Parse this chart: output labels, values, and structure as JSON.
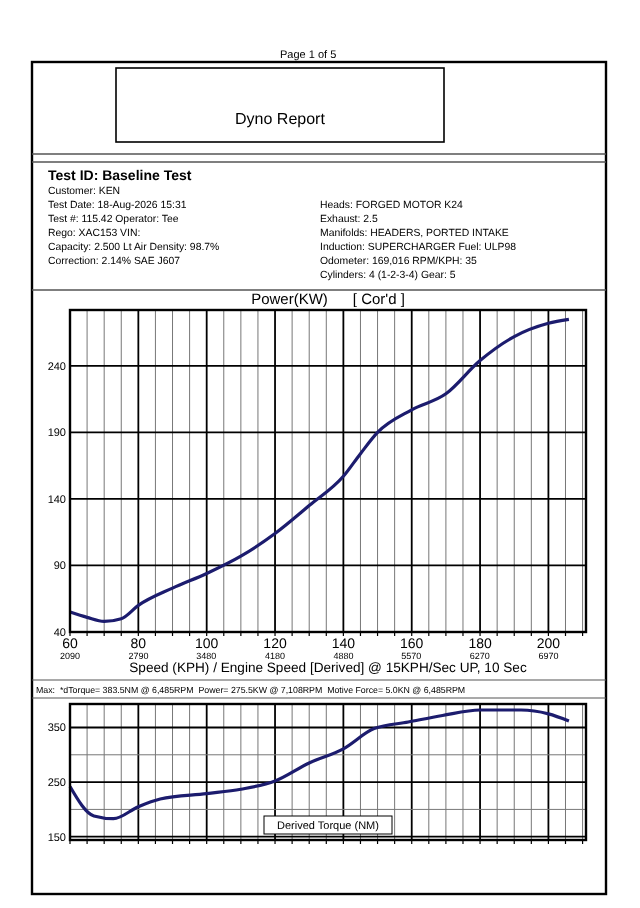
{
  "chart_data": [
    {
      "type": "line",
      "title": "Power(KW)      [ Cor'd ]",
      "xlabel": "Speed (KPH) / Engine Speed [Derived] @ 15KPH/Sec UP, 10 Sec",
      "annotations": [
        "Page 1 of 5",
        "Dyno Report",
        "Test ID: Baseline Test",
        "Customer: KEN",
        "Test Date: 18-Aug-2026 15:31",
        "Test #: 115.42   Operator: Tee",
        "Rego: XAC153   VIN:",
        "Capacity: 2.500 Lt   Air Density: 98.7%",
        "Correction: 2.14% SAE J607",
        "Heads: FORGED MOTOR K24",
        "Exhaust: 2.5",
        "Manifolds: HEADERS, PORTED INTAKE",
        "Induction: SUPERCHARGER   Fuel: ULP98",
        "Odometer: 169,016   RPM/KPH: 35",
        "Cylinders: 4 (1-2-3-4)   Gear: 5"
      ],
      "x": [
        60,
        65,
        70,
        75,
        80,
        90,
        100,
        110,
        120,
        130,
        140,
        145,
        150,
        160,
        170,
        180,
        190,
        200,
        206
      ],
      "series": [
        {
          "color": "#1c1c6e",
          "values": [
            55,
            51,
            48,
            50,
            60,
            73,
            84,
            97,
            114,
            135,
            157,
            174,
            190,
            207,
            219,
            244,
            262,
            272,
            275
          ]
        }
      ],
      "xlim": [
        60,
        211
      ],
      "ylim": [
        40,
        282
      ],
      "xticks": [
        60,
        {
          "value": 65,
          "label": null
        },
        {
          "value": 70,
          "label": null
        },
        {
          "value": 75,
          "label": null
        },
        80,
        {
          "value": 85,
          "label": null
        },
        {
          "value": 90,
          "label": null
        },
        {
          "value": 95,
          "label": null
        },
        100,
        {
          "value": 105,
          "label": null
        },
        {
          "value": 110,
          "label": null
        },
        {
          "value": 115,
          "label": null
        },
        120,
        {
          "value": 125,
          "label": null
        },
        {
          "value": 130,
          "label": null
        },
        {
          "value": 135,
          "label": null
        },
        140,
        {
          "value": 145,
          "label": null
        },
        {
          "value": 150,
          "label": null
        },
        {
          "value": 155,
          "label": null
        },
        160,
        {
          "value": 165,
          "label": null
        },
        {
          "value": 170,
          "label": null
        },
        {
          "value": 175,
          "label": null
        },
        180,
        {
          "value": 185,
          "label": null
        },
        {
          "value": 190,
          "label": null
        },
        {
          "value": 195,
          "label": null
        },
        200,
        {
          "value": 205,
          "label": null
        },
        {
          "value": 210,
          "label": null
        }
      ],
      "x2lim": [
        2090,
        7353
      ],
      "x2ticks": [
        2090,
        2790,
        3480,
        4180,
        4880,
        5570,
        6270,
        6970
      ],
      "yticks": [
        40,
        90,
        140,
        190,
        240
      ],
      "grid": true,
      "marker": "none",
      "line_style": "solid"
    },
    {
      "type": "line",
      "title": "Derived Torque (NM)",
      "annotations": [
        "Max:  *dTorque= 383.5NM @ 6,485RPM  Power= 275.5KW @ 7,108RPM  Motive Force= 5.0KN @ 6,485RPM"
      ],
      "x": [
        60,
        67,
        72.7,
        80,
        86.4,
        100,
        110,
        120,
        130,
        140,
        149,
        159,
        169,
        180,
        192,
        200,
        206
      ],
      "series": [
        {
          "color": "#1c1c6e",
          "values": [
            242,
            188,
            183,
            205,
            219,
            229,
            237,
            252,
            285,
            311,
            348,
            360,
            372,
            382,
            382,
            375,
            362
          ]
        }
      ],
      "xlim": [
        60,
        211
      ],
      "ylim": [
        144,
        393
      ],
      "xticks": [
        60,
        {
          "value": 65,
          "label": null
        },
        {
          "value": 70,
          "label": null
        },
        {
          "value": 75,
          "label": null
        },
        80,
        {
          "value": 85,
          "label": null
        },
        {
          "value": 90,
          "label": null
        },
        {
          "value": 95,
          "label": null
        },
        100,
        {
          "value": 105,
          "label": null
        },
        {
          "value": 110,
          "label": null
        },
        {
          "value": 115,
          "label": null
        },
        120,
        {
          "value": 125,
          "label": null
        },
        {
          "value": 130,
          "label": null
        },
        {
          "value": 135,
          "label": null
        },
        140,
        {
          "value": 145,
          "label": null
        },
        {
          "value": 150,
          "label": null
        },
        {
          "value": 155,
          "label": null
        },
        160,
        {
          "value": 165,
          "label": null
        },
        {
          "value": 170,
          "label": null
        },
        {
          "value": 175,
          "label": null
        },
        180,
        {
          "value": 185,
          "label": null
        },
        {
          "value": 190,
          "label": null
        },
        {
          "value": 195,
          "label": null
        },
        200,
        {
          "value": 205,
          "label": null
        },
        {
          "value": 210,
          "label": null
        }
      ],
      "yticks": [
        150,
        {
          "value": 200,
          "label": null
        },
        250,
        {
          "value": 300,
          "label": null
        },
        350
      ],
      "tick_labels": "y",
      "grid": true,
      "marker": "none",
      "line_style": "solid"
    }
  ]
}
